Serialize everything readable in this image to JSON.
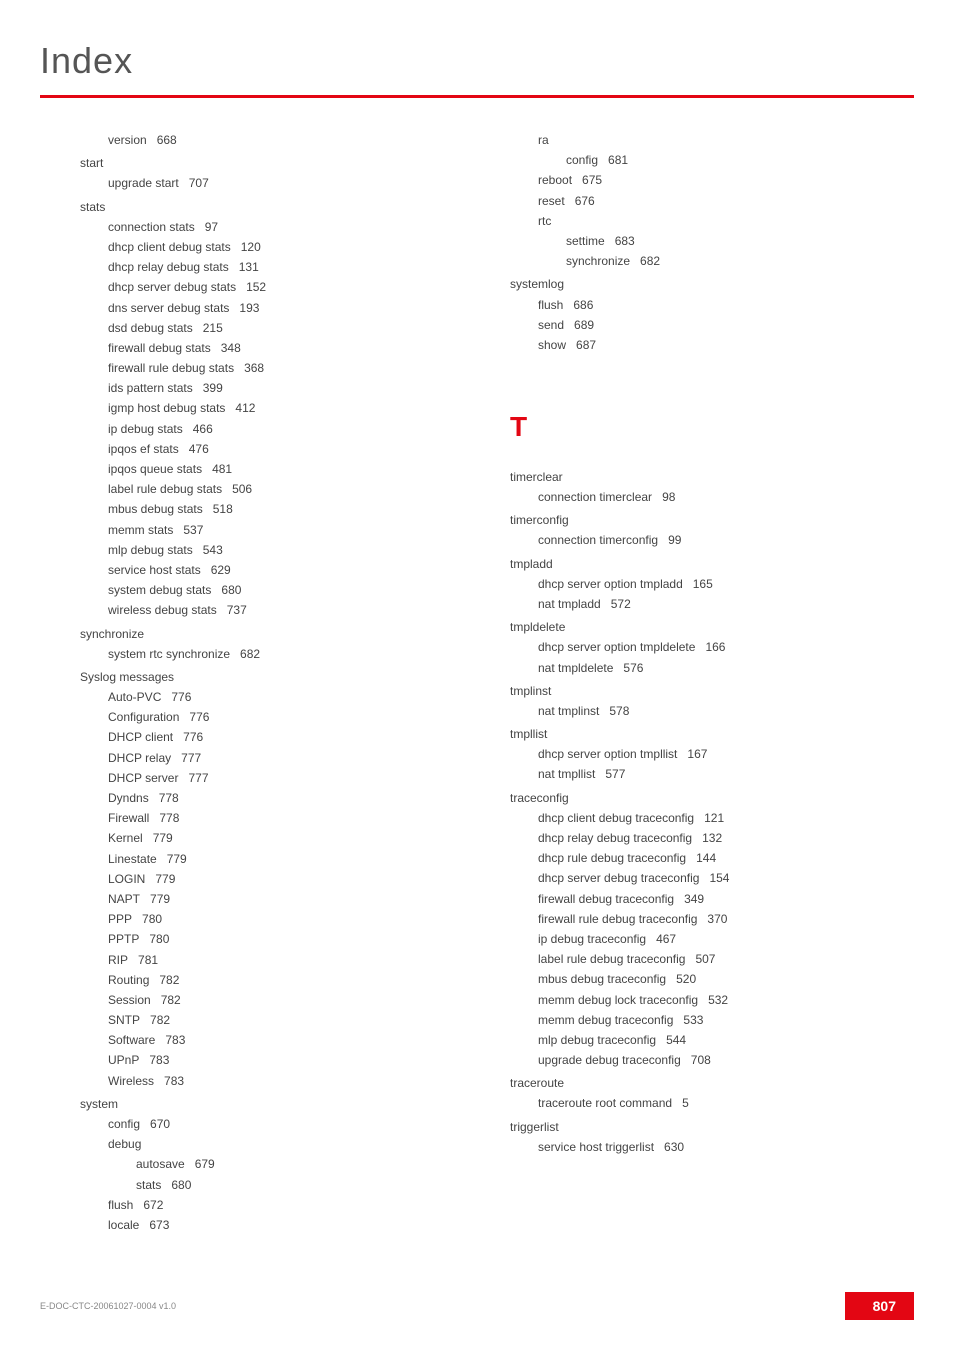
{
  "header": {
    "title": "Index"
  },
  "footer": {
    "doc_id": "E-DOC-CTC-20061027-0004 v1.0",
    "page": "807"
  },
  "section_letter": "T",
  "left_column": [
    {
      "level": 1,
      "text": "version",
      "page": "668"
    },
    {
      "level": 0,
      "text": "start",
      "page": ""
    },
    {
      "level": 1,
      "text": "upgrade start",
      "page": "707"
    },
    {
      "level": 0,
      "text": "stats",
      "page": ""
    },
    {
      "level": 1,
      "text": "connection stats",
      "page": "97"
    },
    {
      "level": 1,
      "text": "dhcp client debug stats",
      "page": "120"
    },
    {
      "level": 1,
      "text": "dhcp relay debug stats",
      "page": "131"
    },
    {
      "level": 1,
      "text": "dhcp server debug stats",
      "page": "152"
    },
    {
      "level": 1,
      "text": "dns server debug stats",
      "page": "193"
    },
    {
      "level": 1,
      "text": "dsd debug stats",
      "page": "215"
    },
    {
      "level": 1,
      "text": "firewall debug stats",
      "page": "348"
    },
    {
      "level": 1,
      "text": "firewall rule debug stats",
      "page": "368"
    },
    {
      "level": 1,
      "text": "ids pattern stats",
      "page": "399"
    },
    {
      "level": 1,
      "text": "igmp host debug stats",
      "page": "412"
    },
    {
      "level": 1,
      "text": "ip debug stats",
      "page": "466"
    },
    {
      "level": 1,
      "text": "ipqos ef stats",
      "page": "476"
    },
    {
      "level": 1,
      "text": "ipqos queue stats",
      "page": "481"
    },
    {
      "level": 1,
      "text": "label rule debug stats",
      "page": "506"
    },
    {
      "level": 1,
      "text": "mbus debug stats",
      "page": "518"
    },
    {
      "level": 1,
      "text": "memm stats",
      "page": "537"
    },
    {
      "level": 1,
      "text": "mlp debug stats",
      "page": "543"
    },
    {
      "level": 1,
      "text": "service host stats",
      "page": "629"
    },
    {
      "level": 1,
      "text": "system debug stats",
      "page": "680"
    },
    {
      "level": 1,
      "text": "wireless debug stats",
      "page": "737"
    },
    {
      "level": 0,
      "text": "synchronize",
      "page": ""
    },
    {
      "level": 1,
      "text": "system rtc synchronize",
      "page": "682"
    },
    {
      "level": 0,
      "text": "Syslog messages",
      "page": ""
    },
    {
      "level": 1,
      "text": "Auto-PVC",
      "page": "776"
    },
    {
      "level": 1,
      "text": "Configuration",
      "page": "776"
    },
    {
      "level": 1,
      "text": "DHCP client",
      "page": "776"
    },
    {
      "level": 1,
      "text": "DHCP relay",
      "page": "777"
    },
    {
      "level": 1,
      "text": "DHCP server",
      "page": "777"
    },
    {
      "level": 1,
      "text": "Dyndns",
      "page": "778"
    },
    {
      "level": 1,
      "text": "Firewall",
      "page": "778"
    },
    {
      "level": 1,
      "text": "Kernel",
      "page": "779"
    },
    {
      "level": 1,
      "text": "Linestate",
      "page": "779"
    },
    {
      "level": 1,
      "text": "LOGIN",
      "page": "779"
    },
    {
      "level": 1,
      "text": "NAPT",
      "page": "779"
    },
    {
      "level": 1,
      "text": "PPP",
      "page": "780"
    },
    {
      "level": 1,
      "text": "PPTP",
      "page": "780"
    },
    {
      "level": 1,
      "text": "RIP",
      "page": "781"
    },
    {
      "level": 1,
      "text": "Routing",
      "page": "782"
    },
    {
      "level": 1,
      "text": "Session",
      "page": "782"
    },
    {
      "level": 1,
      "text": "SNTP",
      "page": "782"
    },
    {
      "level": 1,
      "text": "Software",
      "page": "783"
    },
    {
      "level": 1,
      "text": "UPnP",
      "page": "783"
    },
    {
      "level": 1,
      "text": "Wireless",
      "page": "783"
    },
    {
      "level": 0,
      "text": "system",
      "page": ""
    },
    {
      "level": 1,
      "text": "config",
      "page": "670"
    },
    {
      "level": 1,
      "text": "debug",
      "page": ""
    },
    {
      "level": 2,
      "text": "autosave",
      "page": "679"
    },
    {
      "level": 2,
      "text": "stats",
      "page": "680"
    },
    {
      "level": 1,
      "text": "flush",
      "page": "672"
    },
    {
      "level": 1,
      "text": "locale",
      "page": "673"
    }
  ],
  "right_column_top": [
    {
      "level": 1,
      "text": "ra",
      "page": ""
    },
    {
      "level": 2,
      "text": "config",
      "page": "681"
    },
    {
      "level": 1,
      "text": "reboot",
      "page": "675"
    },
    {
      "level": 1,
      "text": "reset",
      "page": "676"
    },
    {
      "level": 1,
      "text": "rtc",
      "page": ""
    },
    {
      "level": 2,
      "text": "settime",
      "page": "683"
    },
    {
      "level": 2,
      "text": "synchronize",
      "page": "682"
    },
    {
      "level": 0,
      "text": "systemlog",
      "page": ""
    },
    {
      "level": 1,
      "text": "flush",
      "page": "686"
    },
    {
      "level": 1,
      "text": "send",
      "page": "689"
    },
    {
      "level": 1,
      "text": "show",
      "page": "687"
    }
  ],
  "right_column_bottom": [
    {
      "level": 0,
      "text": "timerclear",
      "page": ""
    },
    {
      "level": 1,
      "text": "connection timerclear",
      "page": "98"
    },
    {
      "level": 0,
      "text": "timerconfig",
      "page": ""
    },
    {
      "level": 1,
      "text": "connection timerconfig",
      "page": "99"
    },
    {
      "level": 0,
      "text": "tmpladd",
      "page": ""
    },
    {
      "level": 1,
      "text": "dhcp server option tmpladd",
      "page": "165"
    },
    {
      "level": 1,
      "text": "nat tmpladd",
      "page": "572"
    },
    {
      "level": 0,
      "text": "tmpldelete",
      "page": ""
    },
    {
      "level": 1,
      "text": "dhcp server option tmpldelete",
      "page": "166"
    },
    {
      "level": 1,
      "text": "nat tmpldelete",
      "page": "576"
    },
    {
      "level": 0,
      "text": "tmplinst",
      "page": ""
    },
    {
      "level": 1,
      "text": "nat tmplinst",
      "page": "578"
    },
    {
      "level": 0,
      "text": "tmpllist",
      "page": ""
    },
    {
      "level": 1,
      "text": "dhcp server option tmpllist",
      "page": "167"
    },
    {
      "level": 1,
      "text": "nat tmpllist",
      "page": "577"
    },
    {
      "level": 0,
      "text": "traceconfig",
      "page": ""
    },
    {
      "level": 1,
      "text": "dhcp client debug traceconfig",
      "page": "121"
    },
    {
      "level": 1,
      "text": "dhcp relay debug traceconfig",
      "page": "132"
    },
    {
      "level": 1,
      "text": "dhcp rule debug traceconfig",
      "page": "144"
    },
    {
      "level": 1,
      "text": "dhcp server debug traceconfig",
      "page": "154"
    },
    {
      "level": 1,
      "text": "firewall debug traceconfig",
      "page": "349"
    },
    {
      "level": 1,
      "text": "firewall rule debug traceconfig",
      "page": "370"
    },
    {
      "level": 1,
      "text": "ip debug traceconfig",
      "page": "467"
    },
    {
      "level": 1,
      "text": "label rule debug traceconfig",
      "page": "507"
    },
    {
      "level": 1,
      "text": "mbus debug traceconfig",
      "page": "520"
    },
    {
      "level": 1,
      "text": "memm debug lock traceconfig",
      "page": "532"
    },
    {
      "level": 1,
      "text": "memm debug traceconfig",
      "page": "533"
    },
    {
      "level": 1,
      "text": "mlp debug traceconfig",
      "page": "544"
    },
    {
      "level": 1,
      "text": "upgrade debug traceconfig",
      "page": "708"
    },
    {
      "level": 0,
      "text": "traceroute",
      "page": ""
    },
    {
      "level": 1,
      "text": "traceroute root command",
      "page": "5"
    },
    {
      "level": 0,
      "text": "triggerlist",
      "page": ""
    },
    {
      "level": 1,
      "text": "service host triggerlist",
      "page": "630"
    }
  ]
}
